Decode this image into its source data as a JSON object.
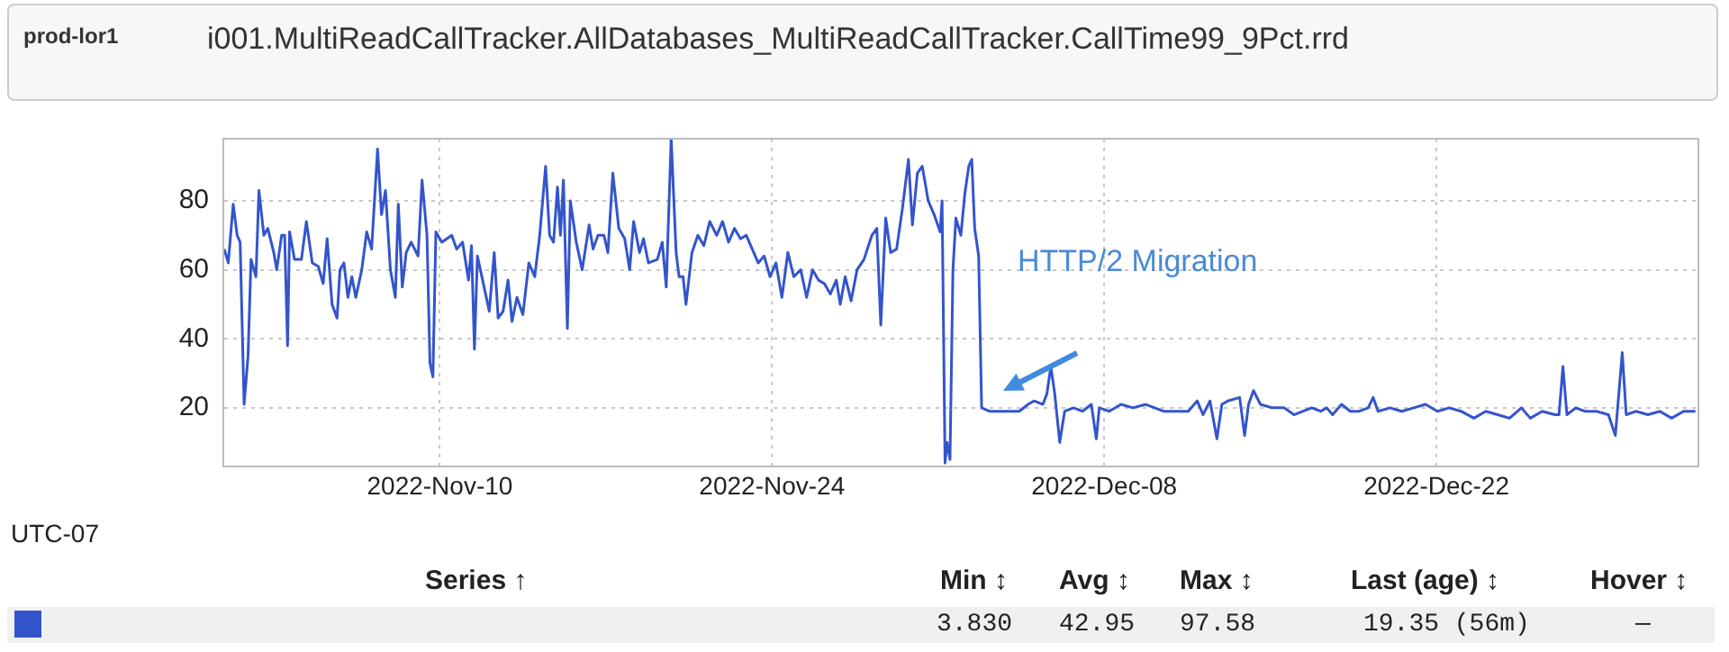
{
  "chart_data": {
    "type": "line",
    "subtitle": "prod-lor1",
    "title": "i001.MultiReadCallTracker.AllDatabases_MultiReadCallTracker.CallTime99_9Pct.rrd",
    "xlim": [
      "2022-10-31T21:00",
      "2023-01-02T01:00"
    ],
    "xticks": [
      {
        "value": "2022-11-10",
        "label": "2022-Nov-10"
      },
      {
        "value": "2022-11-24",
        "label": "2022-Nov-24"
      },
      {
        "value": "2022-12-08",
        "label": "2022-Dec-08"
      },
      {
        "value": "2022-12-22",
        "label": "2022-Dec-22"
      }
    ],
    "ylim": [
      3,
      98
    ],
    "yticks": [
      20,
      40,
      60,
      80
    ],
    "grid": true,
    "legend": false,
    "marker": "none",
    "line_style": "solid",
    "annotations": [
      "HTTP/2 Migration",
      "UTC-07",
      "Series ↑",
      "Min ↕",
      "Avg ↕",
      "Max ↕",
      "Last (age) ↕",
      "Hover ↕",
      "3.830",
      "42.95",
      "97.58",
      "19.35 (56m)",
      "—"
    ],
    "series": [
      {
        "color": "#3355cc",
        "x": [
          "2022-10-31T22:00",
          "2022-11-01T02:00",
          "2022-11-01T07:00",
          "2022-11-01T11:00",
          "2022-11-01T14:00",
          "2022-11-01T18:00",
          "2022-11-01T22:00",
          "2022-11-02T01:00",
          "2022-11-02T06:00",
          "2022-11-02T09:00",
          "2022-11-02T14:00",
          "2022-11-02T18:00",
          "2022-11-03T00:00",
          "2022-11-03T03:00",
          "2022-11-03T08:00",
          "2022-11-03T11:00",
          "2022-11-03T14:00",
          "2022-11-03T16:00",
          "2022-11-03T21:00",
          "2022-11-04T04:00",
          "2022-11-04T09:00",
          "2022-11-04T15:00",
          "2022-11-04T21:00",
          "2022-11-05T02:00",
          "2022-11-05T06:00",
          "2022-11-05T11:00",
          "2022-11-05T16:00",
          "2022-11-05T19:00",
          "2022-11-05T23:00",
          "2022-11-06T03:00",
          "2022-11-06T07:00",
          "2022-11-06T11:00",
          "2022-11-06T17:00",
          "2022-11-06T22:00",
          "2022-11-07T03:00",
          "2022-11-07T09:00",
          "2022-11-07T13:00",
          "2022-11-07T17:00",
          "2022-11-07T22:00",
          "2022-11-08T03:00",
          "2022-11-08T06:00",
          "2022-11-08T10:00",
          "2022-11-08T14:00",
          "2022-11-08T19:00",
          "2022-11-09T02:00",
          "2022-11-09T06:00",
          "2022-11-09T11:00",
          "2022-11-09T14:00",
          "2022-11-09T17:00",
          "2022-11-09T20:00",
          "2022-11-10T02:00",
          "2022-11-10T12:00",
          "2022-11-10T17:00",
          "2022-11-10T23:00",
          "2022-11-11T05:00",
          "2022-11-11T08:00",
          "2022-11-11T11:00",
          "2022-11-11T14:00",
          "2022-11-11T20:00",
          "2022-11-12T02:00",
          "2022-11-12T07:00",
          "2022-11-12T11:00",
          "2022-11-12T16:00",
          "2022-11-12T21:00",
          "2022-11-13T01:00",
          "2022-11-13T06:00",
          "2022-11-13T12:00",
          "2022-11-13T18:00",
          "2022-11-14T00:00",
          "2022-11-14T05:00",
          "2022-11-14T11:00",
          "2022-11-14T15:00",
          "2022-11-14T19:00",
          "2022-11-14T23:00",
          "2022-11-15T02:00",
          "2022-11-15T05:00",
          "2022-11-15T09:00",
          "2022-11-15T12:00",
          "2022-11-15T18:00",
          "2022-11-16T00:00",
          "2022-11-16T07:00",
          "2022-11-16T11:00",
          "2022-11-16T16:00",
          "2022-11-16T22:00",
          "2022-11-17T02:00",
          "2022-11-17T07:00",
          "2022-11-17T13:00",
          "2022-11-17T19:00",
          "2022-11-18T00:00",
          "2022-11-18T04:00",
          "2022-11-18T10:00",
          "2022-11-18T14:00",
          "2022-11-18T19:00",
          "2022-11-19T04:00",
          "2022-11-19T09:00",
          "2022-11-19T13:00",
          "2022-11-19T18:00",
          "2022-11-19T23:00",
          "2022-11-20T02:00",
          "2022-11-20T06:00",
          "2022-11-20T09:00",
          "2022-11-20T15:00",
          "2022-11-20T21:00",
          "2022-11-21T03:00",
          "2022-11-21T09:00",
          "2022-11-21T16:00",
          "2022-11-21T22:00",
          "2022-11-22T04:00",
          "2022-11-22T10:00",
          "2022-11-22T16:00",
          "2022-11-22T22:00",
          "2022-11-23T04:00",
          "2022-11-23T10:00",
          "2022-11-23T16:00",
          "2022-11-23T22:00",
          "2022-11-24T04:00",
          "2022-11-24T10:00",
          "2022-11-24T16:00",
          "2022-11-24T22:00",
          "2022-11-25T05:00",
          "2022-11-25T11:00",
          "2022-11-25T17:00",
          "2022-11-25T23:00",
          "2022-11-26T05:00",
          "2022-11-26T11:00",
          "2022-11-26T17:00",
          "2022-11-26T21:00",
          "2022-11-27T02:00",
          "2022-11-27T08:00",
          "2022-11-27T14:00",
          "2022-11-27T21:00",
          "2022-11-28T05:00",
          "2022-11-28T10:00",
          "2022-11-28T14:00",
          "2022-11-28T19:00",
          "2022-11-29T00:00",
          "2022-11-29T06:00",
          "2022-11-29T12:00",
          "2022-11-29T18:00",
          "2022-11-29T22:00",
          "2022-11-30T03:00",
          "2022-11-30T08:00",
          "2022-11-30T14:00",
          "2022-11-30T20:00",
          "2022-12-01T02:00",
          "2022-12-01T04:00",
          "2022-12-01T07:00",
          "2022-12-01T09:00",
          "2022-12-01T12:00",
          "2022-12-01T15:00",
          "2022-12-01T18:00",
          "2022-12-01T23:00",
          "2022-12-02T03:00",
          "2022-12-02T07:00",
          "2022-12-02T10:00",
          "2022-12-02T13:00",
          "2022-12-02T17:00",
          "2022-12-02T20:00",
          "2022-12-03T04:00",
          "2022-12-03T13:00",
          "2022-12-03T22:00",
          "2022-12-04T10:00",
          "2022-12-04T19:00",
          "2022-12-05T01:00",
          "2022-12-05T10:00",
          "2022-12-05T14:00",
          "2022-12-05T18:00",
          "2022-12-05T22:00",
          "2022-12-06T03:00",
          "2022-12-06T08:00",
          "2022-12-06T17:00",
          "2022-12-07T02:00",
          "2022-12-07T11:00",
          "2022-12-07T16:00",
          "2022-12-07T19:00",
          "2022-12-08T05:00",
          "2022-12-08T17:00",
          "2022-12-09T05:00",
          "2022-12-09T18:00",
          "2022-12-10T12:00",
          "2022-12-11T06:00",
          "2022-12-11T13:00",
          "2022-12-11T22:00",
          "2022-12-12T04:00",
          "2022-12-12T11:00",
          "2022-12-12T18:00",
          "2022-12-12T23:00",
          "2022-12-13T05:00",
          "2022-12-13T17:00",
          "2022-12-13T22:00",
          "2022-12-14T02:00",
          "2022-12-14T07:00",
          "2022-12-14T14:00",
          "2022-12-15T02:00",
          "2022-12-15T14:00",
          "2022-12-16T00:00",
          "2022-12-16T09:00",
          "2022-12-16T18:00",
          "2022-12-17T03:00",
          "2022-12-17T09:00",
          "2022-12-17T15:00",
          "2022-12-18T00:00",
          "2022-12-18T09:00",
          "2022-12-18T18:00",
          "2022-12-19T03:00",
          "2022-12-19T08:00",
          "2022-12-19T13:00",
          "2022-12-20T01:00",
          "2022-12-20T13:00",
          "2022-12-21T01:00",
          "2022-12-21T13:00",
          "2022-12-22T01:00",
          "2022-12-22T13:00",
          "2022-12-23T01:00",
          "2022-12-23T14:00",
          "2022-12-24T02:00",
          "2022-12-24T14:00",
          "2022-12-25T02:00",
          "2022-12-25T14:00",
          "2022-12-25T23:00",
          "2022-12-26T11:00",
          "2022-12-27T00:00",
          "2022-12-27T04:00",
          "2022-12-27T08:00",
          "2022-12-27T12:00",
          "2022-12-27T21:00",
          "2022-12-28T06:00",
          "2022-12-28T18:00",
          "2022-12-29T06:00",
          "2022-12-29T13:00",
          "2022-12-29T20:00",
          "2022-12-30T00:00",
          "2022-12-30T10:00",
          "2022-12-30T22:00",
          "2022-12-31T10:00",
          "2022-12-31T22:00",
          "2023-01-01T10:00",
          "2023-01-01T22:00"
        ],
        "values": [
          66,
          62,
          79,
          70,
          68,
          21,
          35,
          63,
          58,
          83,
          70,
          72,
          65,
          60,
          70,
          70,
          38,
          71,
          63,
          63,
          74,
          62,
          61,
          56,
          69,
          50,
          46,
          60,
          62,
          52,
          58,
          52,
          60,
          71,
          66,
          95,
          76,
          83,
          60,
          52,
          79,
          55,
          65,
          68,
          64,
          86,
          70,
          33,
          29,
          71,
          68,
          70,
          66,
          68,
          57,
          67,
          37,
          64,
          56,
          48,
          65,
          46,
          48,
          57,
          45,
          52,
          47,
          62,
          58,
          70,
          90,
          70,
          68,
          84,
          70,
          86,
          43,
          80,
          68,
          60,
          73,
          66,
          70,
          70,
          65,
          88,
          72,
          69,
          60,
          74,
          65,
          69,
          62,
          63,
          68,
          55,
          98,
          65,
          58,
          58,
          50,
          65,
          70,
          67,
          74,
          70,
          74,
          68,
          72,
          69,
          70,
          66,
          62,
          64,
          58,
          62,
          52,
          65,
          58,
          60,
          52,
          60,
          57,
          56,
          53,
          57,
          50,
          58,
          51,
          60,
          63,
          70,
          72,
          44,
          75,
          65,
          66,
          78,
          92,
          73,
          88,
          90,
          80,
          76,
          71,
          80,
          4,
          10,
          5,
          60,
          75,
          70,
          82,
          90,
          92,
          72,
          64,
          20,
          19,
          19,
          19,
          19,
          21,
          22,
          21,
          24,
          32,
          24,
          10,
          19,
          20,
          19,
          21,
          11,
          20,
          19,
          21,
          20,
          21,
          19,
          19,
          19,
          22,
          18,
          22,
          11,
          21,
          22,
          23,
          12,
          21,
          25,
          21,
          20,
          20,
          18,
          19,
          20,
          19,
          20,
          18,
          21,
          19,
          19,
          20,
          23,
          19,
          20,
          19,
          20,
          21,
          19,
          20,
          19,
          17,
          19,
          18,
          17,
          20,
          17,
          19,
          18,
          18,
          32,
          18,
          20,
          19,
          19,
          18,
          12,
          36,
          18,
          19,
          18,
          19,
          17,
          19,
          19
        ]
      }
    ]
  }
}
